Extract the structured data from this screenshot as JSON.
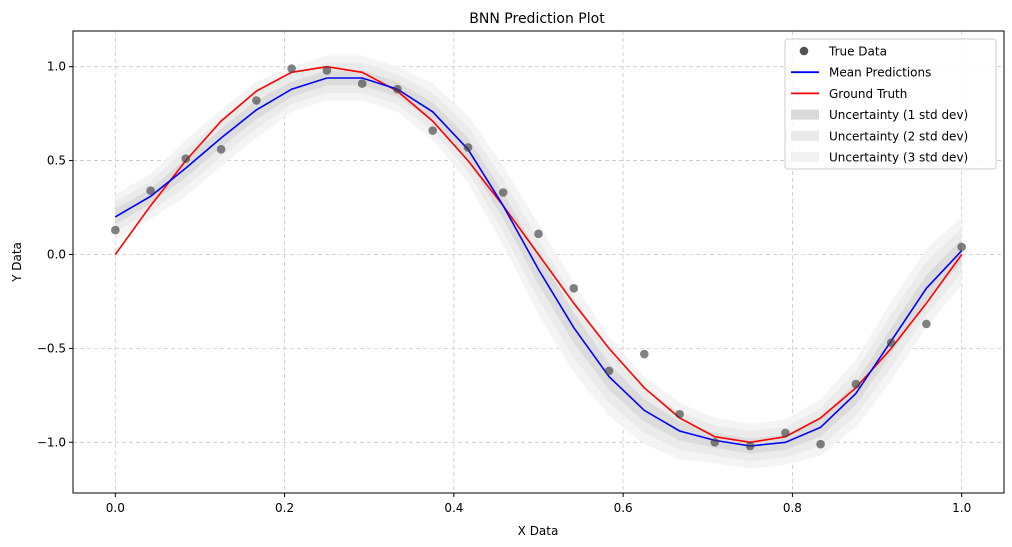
{
  "chart_data": {
    "type": "line",
    "title": "BNN Prediction Plot",
    "xlabel": "X Data",
    "ylabel": "Y Data",
    "xlim": [
      -0.05,
      1.05
    ],
    "ylim": [
      -1.27,
      1.19
    ],
    "xticks": [
      0.0,
      0.2,
      0.4,
      0.6,
      0.8,
      1.0
    ],
    "xtick_labels": [
      "0.0",
      "0.2",
      "0.4",
      "0.6",
      "0.8",
      "1.0"
    ],
    "yticks": [
      -1.0,
      -0.5,
      0.0,
      0.5,
      1.0
    ],
    "ytick_labels": [
      "−1.0",
      "−0.5",
      "0.0",
      "0.5",
      "1.0"
    ],
    "grid": true,
    "legend_position": "top-right",
    "legend": [
      {
        "label": "True Data",
        "kind": "marker",
        "color": "#404040"
      },
      {
        "label": "Mean Predictions",
        "kind": "line",
        "color": "#0000ff"
      },
      {
        "label": "Ground Truth",
        "kind": "line",
        "color": "#ff0000"
      },
      {
        "label": "Uncertainty (1 std dev)",
        "kind": "patch",
        "color": "#d9d9d9"
      },
      {
        "label": "Uncertainty (2 std dev)",
        "kind": "patch",
        "color": "#e9e9e9"
      },
      {
        "label": "Uncertainty (3 std dev)",
        "kind": "patch",
        "color": "#f2f2f2"
      }
    ],
    "x": [
      0.0,
      0.0417,
      0.0833,
      0.125,
      0.1667,
      0.2083,
      0.25,
      0.2917,
      0.3333,
      0.375,
      0.4167,
      0.4583,
      0.5,
      0.5417,
      0.5833,
      0.625,
      0.6667,
      0.7083,
      0.75,
      0.7917,
      0.8333,
      0.875,
      0.9167,
      0.9583,
      1.0
    ],
    "series": [
      {
        "name": "True Data",
        "type": "scatter",
        "color": "#404040",
        "y": [
          0.13,
          0.34,
          0.51,
          0.56,
          0.82,
          0.99,
          0.98,
          0.91,
          0.88,
          0.66,
          0.57,
          0.33,
          0.11,
          -0.18,
          -0.62,
          -0.53,
          -0.85,
          -1.0,
          -1.02,
          -0.95,
          -1.01,
          -0.69,
          -0.47,
          -0.37,
          0.04
        ]
      },
      {
        "name": "Mean Predictions",
        "type": "line",
        "color": "#0000ff",
        "y": [
          0.2,
          0.31,
          0.46,
          0.62,
          0.77,
          0.88,
          0.94,
          0.94,
          0.88,
          0.76,
          0.56,
          0.26,
          -0.08,
          -0.39,
          -0.65,
          -0.83,
          -0.94,
          -0.99,
          -1.02,
          -1.0,
          -0.92,
          -0.74,
          -0.46,
          -0.18,
          0.02
        ]
      },
      {
        "name": "Ground Truth",
        "type": "line",
        "color": "#ff0000",
        "y": [
          0.0,
          0.26,
          0.5,
          0.71,
          0.87,
          0.97,
          1.0,
          0.97,
          0.87,
          0.71,
          0.5,
          0.26,
          0.0,
          -0.26,
          -0.5,
          -0.71,
          -0.87,
          -0.97,
          -1.0,
          -0.97,
          -0.87,
          -0.71,
          -0.5,
          -0.26,
          0.0
        ]
      }
    ],
    "uncertainty_std": [
      0.04,
      0.04,
      0.05,
      0.05,
      0.05,
      0.04,
      0.04,
      0.04,
      0.04,
      0.05,
      0.06,
      0.07,
      0.08,
      0.08,
      0.07,
      0.06,
      0.05,
      0.04,
      0.04,
      0.04,
      0.05,
      0.06,
      0.07,
      0.07,
      0.06
    ]
  }
}
